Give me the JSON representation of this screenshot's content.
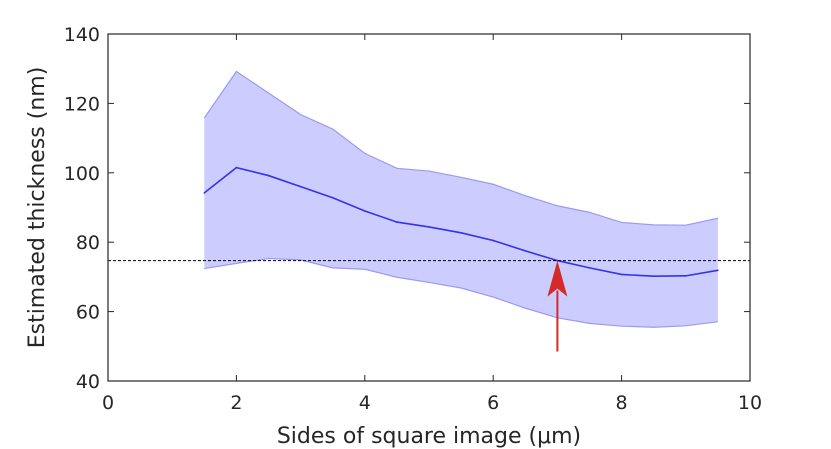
{
  "chart_data": {
    "type": "line",
    "xlabel": "Sides of square image (μm)",
    "ylabel": "Estimated thickness (nm)",
    "xlim": [
      0,
      10
    ],
    "ylim": [
      40,
      140
    ],
    "xticks": [
      "0",
      "2",
      "4",
      "6",
      "8",
      "10"
    ],
    "yticks": [
      "40",
      "60",
      "80",
      "100",
      "120",
      "140"
    ],
    "grid": false,
    "x": [
      1.5,
      2,
      2.5,
      3,
      3.5,
      4,
      4.5,
      5,
      5.5,
      6,
      6.5,
      7,
      7.5,
      8,
      8.5,
      9,
      9.5
    ],
    "series": [
      {
        "values": [
          94.2,
          101.5,
          99.2,
          96.0,
          92.8,
          89.0,
          85.8,
          84.4,
          82.7,
          80.5,
          77.5,
          74.7,
          72.6,
          70.7,
          70.2,
          70.3,
          71.9
        ],
        "lower": [
          72.4,
          73.9,
          75.3,
          74.9,
          72.6,
          72.2,
          69.9,
          68.4,
          66.8,
          64.2,
          61.0,
          58.2,
          56.6,
          55.8,
          55.5,
          55.9,
          57.1
        ],
        "upper": [
          115.8,
          129.2,
          123.0,
          116.8,
          112.6,
          105.6,
          101.3,
          100.5,
          98.7,
          96.7,
          93.4,
          90.5,
          88.6,
          85.7,
          85.0,
          84.9,
          86.9
        ],
        "color": "#3333ee",
        "band_color": "#ccccff"
      }
    ],
    "reference_line": {
      "y": 74.7,
      "color": "#000000",
      "style": "dashed"
    },
    "annotation": {
      "type": "arrow",
      "x": 7,
      "y_from": 48.5,
      "y_to": 74.7,
      "color": "#d42a2a"
    }
  }
}
